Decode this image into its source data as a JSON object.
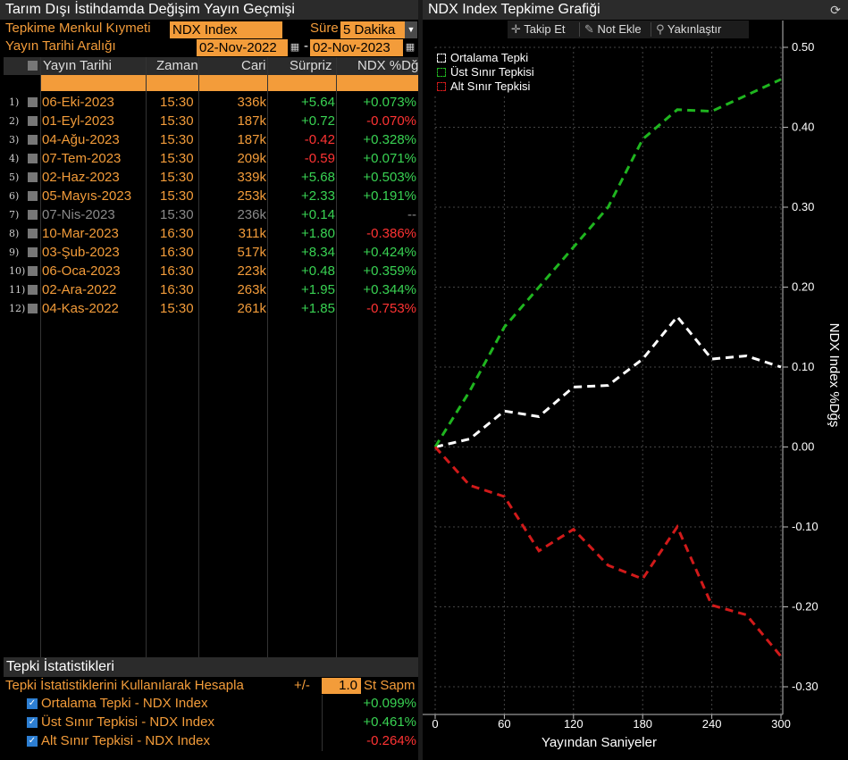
{
  "left_panel": {
    "title": "Tarım Dışı İstihdamda Değişim Yayın Geçmişi",
    "security_label": "Tepkime Menkul Kıymeti",
    "security_value": "NDX Index",
    "duration_label": "Süre",
    "duration_value": "5 Dakika",
    "date_range_label": "Yayın Tarihi Aralığı",
    "date_from": "02-Nov-2022",
    "date_separator": "-",
    "date_to": "02-Nov-2023"
  },
  "table": {
    "headers": {
      "release_date": "Yayın Tarihi",
      "time": "Zaman",
      "actual": "Cari",
      "surprise": "Sürpriz",
      "ndx_change": "NDX %Dğş"
    },
    "rows": [
      {
        "num": "1)",
        "date": "06-Eki-2023",
        "time": "15:30",
        "actual": "336k",
        "surprise": "+5.64",
        "change": "+0.073%",
        "change_color": "green",
        "surprise_color": "green",
        "dim": false
      },
      {
        "num": "2)",
        "date": "01-Eyl-2023",
        "time": "15:30",
        "actual": "187k",
        "surprise": "+0.72",
        "change": "-0.070%",
        "change_color": "red",
        "surprise_color": "green",
        "dim": false
      },
      {
        "num": "3)",
        "date": "04-Ağu-2023",
        "time": "15:30",
        "actual": "187k",
        "surprise": "-0.42",
        "change": "+0.328%",
        "change_color": "green",
        "surprise_color": "red",
        "dim": false
      },
      {
        "num": "4)",
        "date": "07-Tem-2023",
        "time": "15:30",
        "actual": "209k",
        "surprise": "-0.59",
        "change": "+0.071%",
        "change_color": "green",
        "surprise_color": "red",
        "dim": false
      },
      {
        "num": "5)",
        "date": "02-Haz-2023",
        "time": "15:30",
        "actual": "339k",
        "surprise": "+5.68",
        "change": "+0.503%",
        "change_color": "green",
        "surprise_color": "green",
        "dim": false
      },
      {
        "num": "6)",
        "date": "05-Mayıs-2023",
        "time": "15:30",
        "actual": "253k",
        "surprise": "+2.33",
        "change": "+0.191%",
        "change_color": "green",
        "surprise_color": "green",
        "dim": false
      },
      {
        "num": "7)",
        "date": "07-Nis-2023",
        "time": "15:30",
        "actual": "236k",
        "surprise": "+0.14",
        "change": "--",
        "change_color": "grey",
        "surprise_color": "green",
        "dim": true
      },
      {
        "num": "8)",
        "date": "10-Mar-2023",
        "time": "16:30",
        "actual": "311k",
        "surprise": "+1.80",
        "change": "-0.386%",
        "change_color": "red",
        "surprise_color": "green",
        "dim": false
      },
      {
        "num": "9)",
        "date": "03-Şub-2023",
        "time": "16:30",
        "actual": "517k",
        "surprise": "+8.34",
        "change": "+0.424%",
        "change_color": "green",
        "surprise_color": "green",
        "dim": false
      },
      {
        "num": "10)",
        "date": "06-Oca-2023",
        "time": "16:30",
        "actual": "223k",
        "surprise": "+0.48",
        "change": "+0.359%",
        "change_color": "green",
        "surprise_color": "green",
        "dim": false
      },
      {
        "num": "11)",
        "date": "02-Ara-2022",
        "time": "16:30",
        "actual": "263k",
        "surprise": "+1.95",
        "change": "+0.344%",
        "change_color": "green",
        "surprise_color": "green",
        "dim": false
      },
      {
        "num": "12)",
        "date": "04-Kas-2022",
        "time": "15:30",
        "actual": "261k",
        "surprise": "+1.85",
        "change": "-0.753%",
        "change_color": "red",
        "surprise_color": "green",
        "dim": false
      }
    ]
  },
  "stats": {
    "title": "Tepki İstatistikleri",
    "calc_label": "Tepki İstatistiklerini Kullanılarak Hesapla",
    "plus_minus": "+/-",
    "stdev_value": "1.0",
    "stdev_label": "St Sapm",
    "items": [
      {
        "label": "Ortalama Tepki - NDX Index",
        "value": "+0.099%",
        "color": "green"
      },
      {
        "label": "Üst Sınır Tepkisi - NDX Index",
        "value": "+0.461%",
        "color": "green"
      },
      {
        "label": "Alt Sınır Tepkisi - NDX Index",
        "value": "-0.264%",
        "color": "red"
      }
    ]
  },
  "right_panel": {
    "title": "NDX Index Tepkime Grafiği",
    "toolbar": {
      "track": "Takip Et",
      "note": "Not Ekle",
      "zoom": "Yakınlaştır"
    }
  },
  "colors": {
    "orange": "#f39c3a",
    "green": "#39d353",
    "red": "#ff3333",
    "line_green": "#1fb51f",
    "line_red": "#d11a1a",
    "line_white": "#ffffff"
  },
  "chart_data": {
    "type": "line",
    "xlabel": "Yayından Saniyeler",
    "ylabel": "NDX Index %Dğş",
    "xlim": [
      0,
      300
    ],
    "ylim": [
      -0.3,
      0.5
    ],
    "x_ticks": [
      0,
      60,
      120,
      180,
      240,
      300
    ],
    "y_ticks": [
      0.5,
      0.4,
      0.3,
      0.2,
      0.1,
      0.0,
      -0.1,
      -0.2,
      -0.3
    ],
    "y_tick_labels": [
      "0.50",
      "0.40",
      "0.30",
      "0.20",
      "0.10",
      "0.00",
      "-0.10",
      "-0.20",
      "-0.30"
    ],
    "grid": true,
    "legend_position": "top-left",
    "x": [
      0,
      30,
      60,
      90,
      120,
      150,
      180,
      210,
      240,
      270,
      300
    ],
    "series": [
      {
        "name": "Ortalama Tepki",
        "color": "#ffffff",
        "values": [
          0.0,
          0.01,
          0.045,
          0.038,
          0.075,
          0.077,
          0.11,
          0.163,
          0.11,
          0.114,
          0.1
        ]
      },
      {
        "name": "Üst Sınır Tepkisi",
        "color": "#1fb51f",
        "values": [
          0.0,
          0.07,
          0.15,
          0.2,
          0.25,
          0.3,
          0.385,
          0.422,
          0.42,
          0.44,
          0.46
        ]
      },
      {
        "name": "Alt Sınır Tepkisi",
        "color": "#d11a1a",
        "values": [
          0.0,
          -0.048,
          -0.062,
          -0.13,
          -0.103,
          -0.148,
          -0.165,
          -0.1,
          -0.198,
          -0.21,
          -0.262
        ]
      }
    ]
  }
}
